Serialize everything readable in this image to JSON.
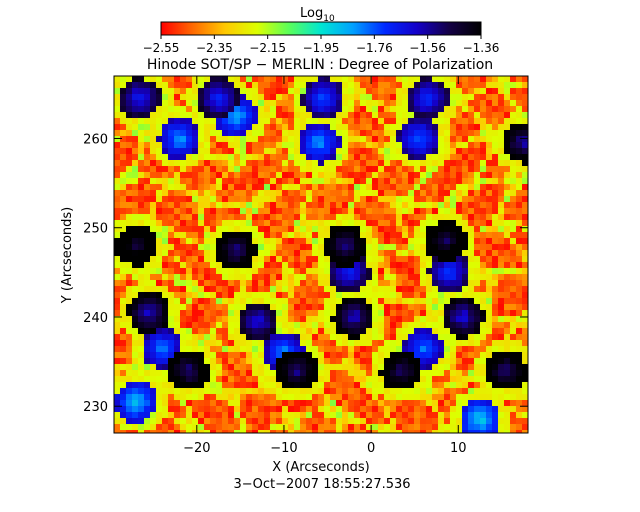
{
  "chart_data": {
    "type": "heatmap",
    "title": "Hinode SOT/SP − MERLIN : Degree of Polarization",
    "xlabel": "X (Arcseconds)",
    "ylabel": "Y (Arcseconds)",
    "date_label": "3−Oct−2007 18:55:27.536",
    "xlim": [
      -29.5,
      18
    ],
    "ylim": [
      227,
      267
    ],
    "x_ticks": [
      -20,
      -10,
      0,
      10
    ],
    "x_tick_labels": [
      "−20",
      "−10",
      "0",
      "10"
    ],
    "y_ticks": [
      230,
      240,
      250,
      260
    ],
    "y_tick_labels": [
      "230",
      "240",
      "250",
      "260"
    ],
    "colorbar": {
      "title_main": "Log",
      "title_sub": "10",
      "min": -2.55,
      "max": -1.36,
      "tick_labels": [
        "−2.55",
        "−2.35",
        "−2.15",
        "−1.95",
        "−1.76",
        "−1.56",
        "−1.36"
      ],
      "colors": [
        "#ff0000",
        "#ff6a00",
        "#ffc800",
        "#dcff00",
        "#5aff5a",
        "#00e6d2",
        "#00a0ff",
        "#0028ff",
        "#1400c8",
        "#140046",
        "#000000"
      ]
    },
    "field_level": -2.46,
    "patches": [
      {
        "x": -26.5,
        "y": 264.5,
        "level": -1.7
      },
      {
        "x": -22,
        "y": 260,
        "level": -1.85
      },
      {
        "x": -17.5,
        "y": 264.5,
        "level": -1.72
      },
      {
        "x": -15.5,
        "y": 262.5,
        "level": -1.88
      },
      {
        "x": -5.5,
        "y": 264.5,
        "level": -1.78
      },
      {
        "x": 6.5,
        "y": 264.5,
        "level": -1.74
      },
      {
        "x": 5.5,
        "y": 260,
        "level": -1.8
      },
      {
        "x": -6,
        "y": 259.5,
        "level": -1.85
      },
      {
        "x": 17.5,
        "y": 259.5,
        "level": -1.58
      },
      {
        "x": -27,
        "y": 248,
        "level": -1.48
      },
      {
        "x": -15.5,
        "y": 247.5,
        "level": -1.55
      },
      {
        "x": -3,
        "y": 248,
        "level": -1.56
      },
      {
        "x": 8.5,
        "y": 248.5,
        "level": -1.52
      },
      {
        "x": -2.5,
        "y": 245,
        "level": -1.72
      },
      {
        "x": 9,
        "y": 245,
        "level": -1.75
      },
      {
        "x": -25.5,
        "y": 240.5,
        "level": -1.62
      },
      {
        "x": -13,
        "y": 239.5,
        "level": -1.66
      },
      {
        "x": -2,
        "y": 240,
        "level": -1.62
      },
      {
        "x": 10.5,
        "y": 240,
        "level": -1.64
      },
      {
        "x": -21,
        "y": 234,
        "level": -1.55
      },
      {
        "x": -8.5,
        "y": 234,
        "level": -1.56
      },
      {
        "x": 3.5,
        "y": 234,
        "level": -1.53
      },
      {
        "x": 15.5,
        "y": 234,
        "level": -1.55
      },
      {
        "x": -24,
        "y": 236.5,
        "level": -1.82
      },
      {
        "x": -10,
        "y": 236,
        "level": -1.84
      },
      {
        "x": 6,
        "y": 236.5,
        "level": -1.82
      },
      {
        "x": -27,
        "y": 230.5,
        "level": -1.9
      },
      {
        "x": 12.5,
        "y": 228.5,
        "level": -1.92
      }
    ]
  }
}
